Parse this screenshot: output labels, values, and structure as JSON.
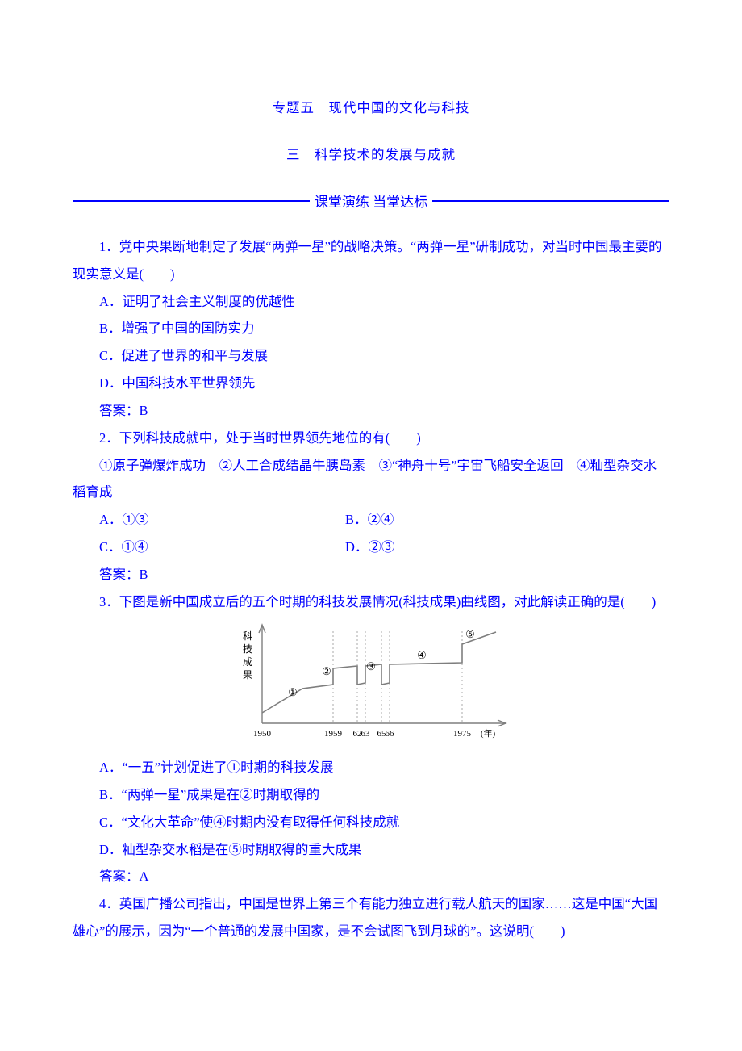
{
  "colors": {
    "text": "#0000ff",
    "background": "#ffffff",
    "figure_stroke": "#7e7e7e",
    "figure_dash": "#a9a9a9",
    "figure_text": "#000000"
  },
  "fontsize_pt": 12,
  "title": "专题五　现代中国的文化与科技",
  "subtitle": "三　科学技术的发展与成就",
  "banner": "课堂演练 当堂达标",
  "q1": {
    "stem": "1．党中央果断地制定了发展“两弹一星”的战略决策。“两弹一星”研制成功，对当时中国最主要的现实意义是(　　)",
    "opts": {
      "A": "A．证明了社会主义制度的优越性",
      "B": "B．增强了中国的国防实力",
      "C": "C．促进了世界的和平与发展",
      "D": "D．中国科技水平世界领先"
    },
    "answer": "答案：B"
  },
  "q2": {
    "stem": "2．下列科技成就中，处于当时世界领先地位的有(　　)",
    "sub": "①原子弹爆炸成功　②人工合成结晶牛胰岛素　③“神舟十号”宇宙飞船安全返回　④籼型杂交水稻育成",
    "opts": {
      "A": "A．①③",
      "B": "B．②④",
      "C": "C．①④",
      "D": "D．②③"
    },
    "answer": "答案：B"
  },
  "q3": {
    "stem": "3．下图是新中国成立后的五个时期的科技发展情况(科技成果)曲线图，对此解读正确的是(　　)",
    "figure": {
      "type": "line",
      "ylabel_chars": [
        "科",
        "技",
        "成",
        "果"
      ],
      "x_ticks": [
        "1950",
        "1959",
        "62",
        "63",
        "65",
        "66",
        "1975",
        "(年)"
      ],
      "x_positions": [
        40,
        128,
        158,
        168,
        188,
        198,
        288,
        320
      ],
      "line_points": [
        [
          40,
          115
        ],
        [
          90,
          85
        ],
        [
          128,
          80
        ],
        [
          128,
          60
        ],
        [
          158,
          57
        ],
        [
          158,
          80
        ],
        [
          168,
          78
        ],
        [
          168,
          57
        ],
        [
          188,
          55
        ],
        [
          188,
          80
        ],
        [
          198,
          78
        ],
        [
          198,
          55
        ],
        [
          288,
          53
        ],
        [
          288,
          30
        ],
        [
          330,
          15
        ]
      ],
      "segment_label_positions": {
        "1": [
          78,
          94
        ],
        "2": [
          120,
          68
        ],
        "3": [
          175,
          62
        ],
        "4": [
          238,
          48
        ],
        "5": [
          298,
          22
        ]
      },
      "dashes_x": [
        128,
        158,
        168,
        188,
        198,
        288
      ],
      "axis_color": "#7e7e7e",
      "dash_color": "#a9a9a9",
      "font_size": 12
    },
    "opts": {
      "A": "A．“一五”计划促进了①时期的科技发展",
      "B": "B．“两弹一星”成果是在②时期取得的",
      "C": "C．“文化大革命”使④时期内没有取得任何科技成就",
      "D": "D．籼型杂交水稻是在⑤时期取得的重大成果"
    },
    "answer": "答案：A"
  },
  "q4": {
    "stem": "4．英国广播公司指出，中国是世界上第三个有能力独立进行载人航天的国家……这是中国“大国雄心”的展示，因为“一个普通的发展中国家，是不会试图飞到月球的”。这说明(　　)"
  }
}
